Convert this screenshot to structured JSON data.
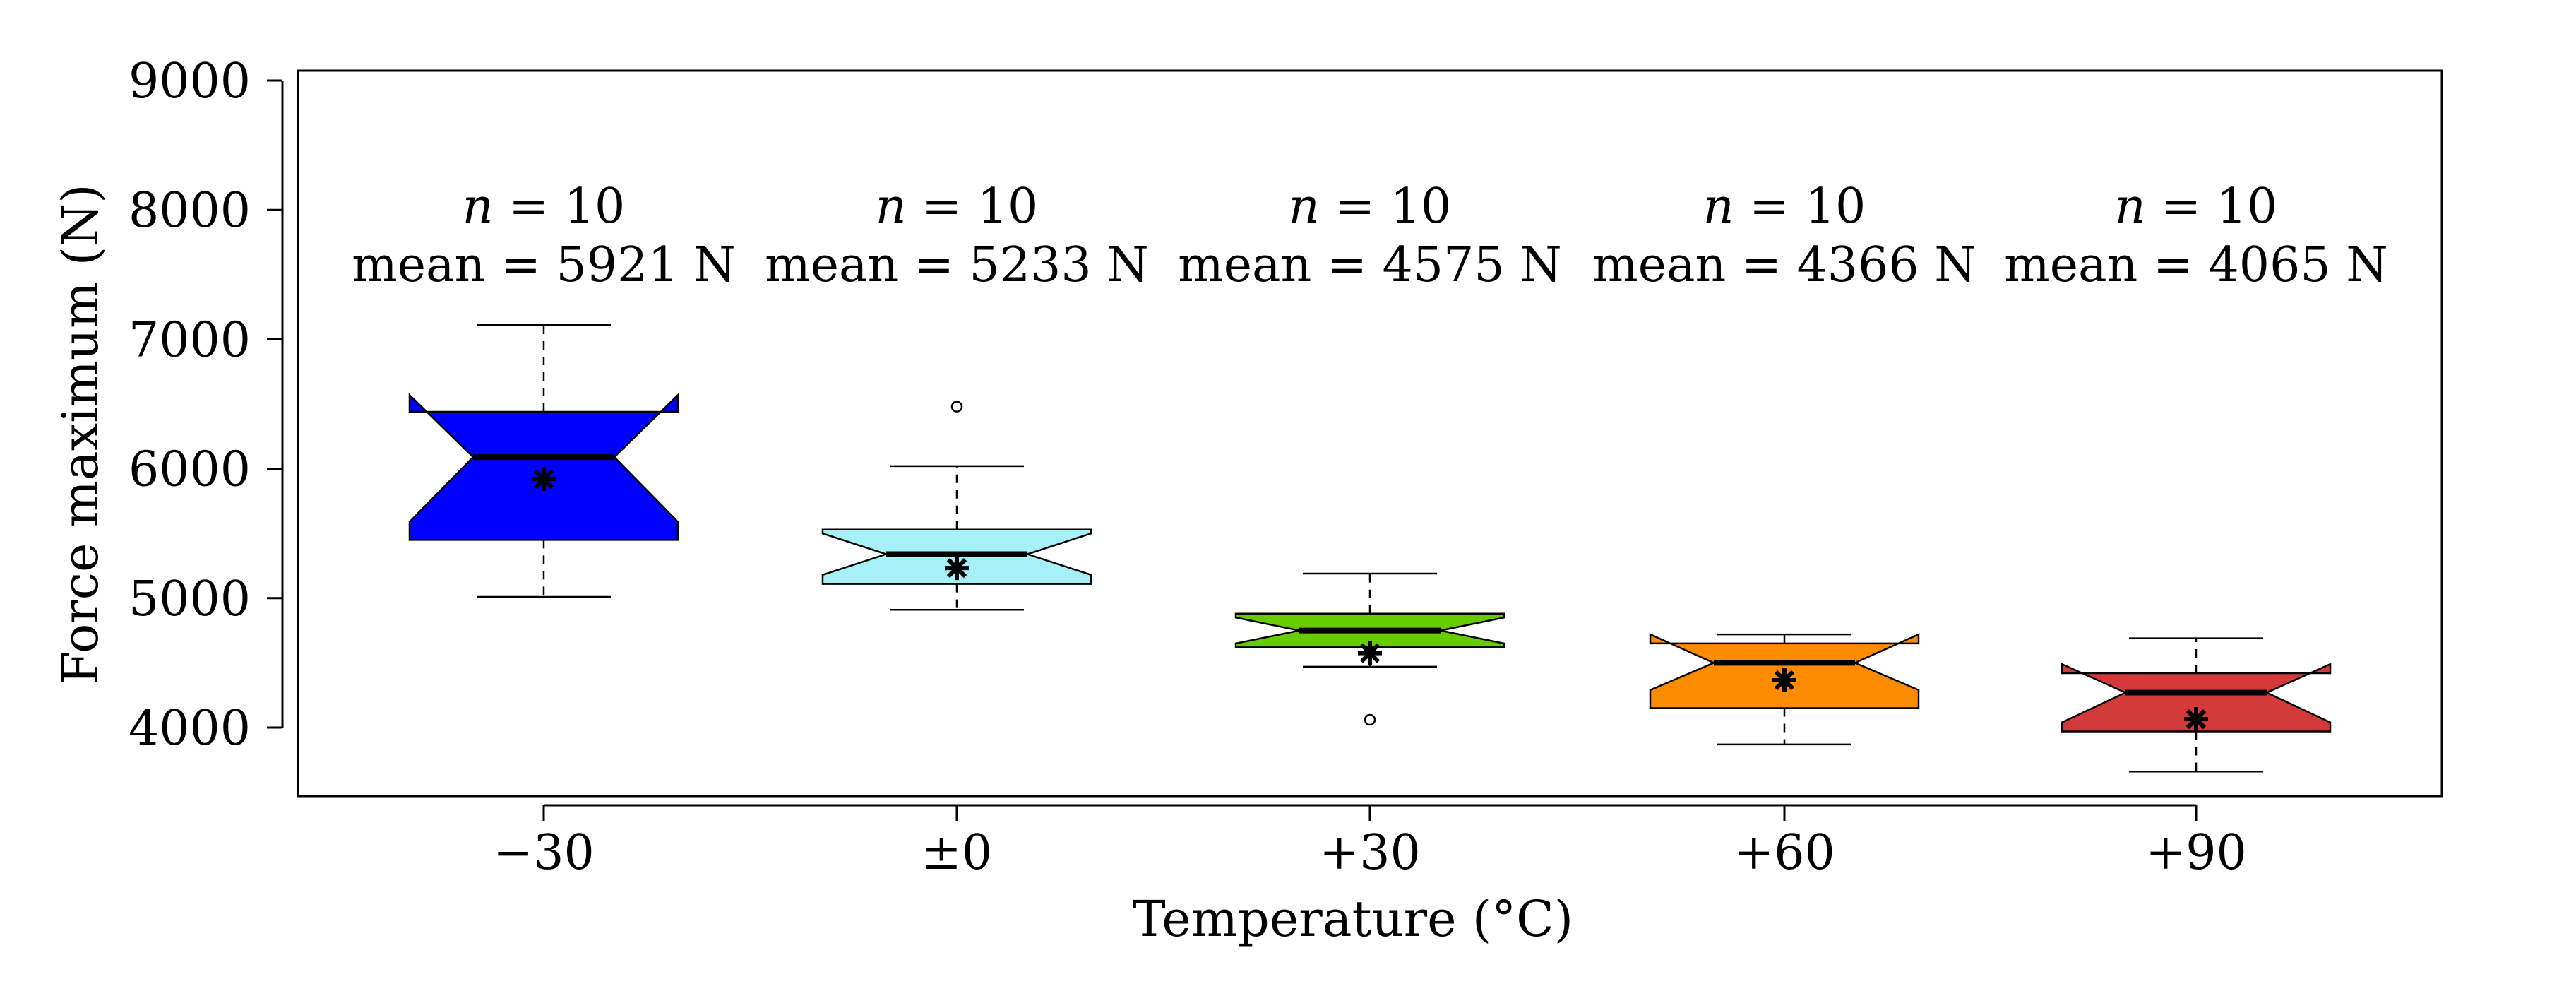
{
  "chart_data": {
    "type": "boxplot",
    "notched": true,
    "xlabel": "Temperature  (°C)",
    "ylabel": "Force maximum  (N)",
    "ylim": [
      3500,
      9200
    ],
    "yticks": [
      4000,
      5000,
      6000,
      7000,
      8000,
      9000
    ],
    "categories": [
      "−30",
      "±0",
      "+30",
      "+60",
      "+90"
    ],
    "annotations": [
      {
        "n_symbol": "n",
        "n_text": " = 10",
        "mean_text": "mean = 5921 N"
      },
      {
        "n_symbol": "n",
        "n_text": " = 10",
        "mean_text": "mean = 5233 N"
      },
      {
        "n_symbol": "n",
        "n_text": " = 10",
        "mean_text": "mean = 4575 N"
      },
      {
        "n_symbol": "n",
        "n_text": " = 10",
        "mean_text": "mean = 4366 N"
      },
      {
        "n_symbol": "n",
        "n_text": " = 10",
        "mean_text": "mean = 4065 N"
      }
    ],
    "series": [
      {
        "name": "−30",
        "color": "#0000ff",
        "whisker_low": 5010,
        "q1": 5450,
        "median": 6090,
        "q3": 6440,
        "whisker_high": 7110,
        "notch_low": 5590,
        "notch_high": 6570,
        "mean": 5921,
        "outliers": []
      },
      {
        "name": "±0",
        "color": "#a6f0f8",
        "whisker_low": 4910,
        "q1": 5110,
        "median": 5340,
        "q3": 5530,
        "whisker_high": 6020,
        "notch_low": 5180,
        "notch_high": 5500,
        "mean": 5233,
        "outliers": [
          6480
        ]
      },
      {
        "name": "+30",
        "color": "#66cc00",
        "whisker_low": 4470,
        "q1": 4620,
        "median": 4750,
        "q3": 4880,
        "whisker_high": 5190,
        "notch_low": 4650,
        "notch_high": 4850,
        "mean": 4575,
        "outliers": [
          4060
        ]
      },
      {
        "name": "+60",
        "color": "#ff8c00",
        "whisker_low": 3870,
        "q1": 4150,
        "median": 4500,
        "q3": 4650,
        "whisker_high": 4720,
        "notch_low": 4290,
        "notch_high": 4720,
        "mean": 4366,
        "outliers": []
      },
      {
        "name": "+90",
        "color": "#d33b3b",
        "whisker_low": 3660,
        "q1": 3970,
        "median": 4270,
        "q3": 4420,
        "whisker_high": 4690,
        "notch_low": 4040,
        "notch_high": 4490,
        "mean": 4065,
        "outliers": []
      }
    ]
  }
}
